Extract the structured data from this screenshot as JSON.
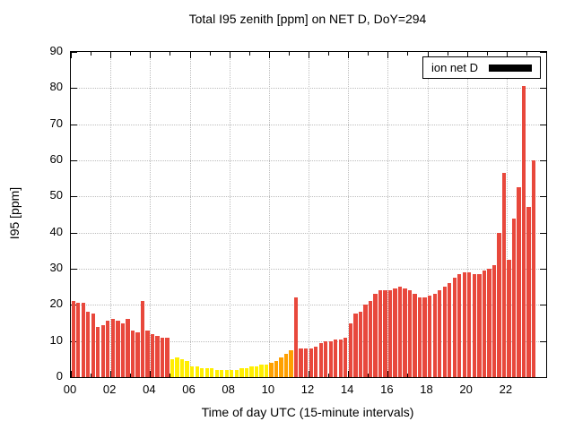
{
  "title": "Total I95 zenith [ppm] on NET D, DoY=294",
  "legend": {
    "label": "ion net D",
    "swatch_color": "#000000"
  },
  "axes": {
    "ylabel": "I95 [ppm]",
    "xlabel": "Time of day UTC (15-minute intervals)",
    "y_ticks": [
      "0",
      "10",
      "20",
      "30",
      "40",
      "50",
      "60",
      "70",
      "80",
      "90"
    ],
    "x_ticks": [
      "00",
      "02",
      "04",
      "06",
      "08",
      "10",
      "12",
      "14",
      "16",
      "18",
      "20",
      "22"
    ]
  },
  "chart_data": {
    "type": "bar",
    "title": "Total I95 zenith [ppm] on NET D, DoY=294",
    "xlabel": "Time of day UTC (15-minute intervals)",
    "ylabel": "I95 [ppm]",
    "ylim": [
      0,
      90
    ],
    "xlim_hours": [
      0,
      24
    ],
    "interval_minutes": 15,
    "start_time": "00:00",
    "legend_entries": [
      {
        "label": "ion net D",
        "color": "#000000"
      }
    ],
    "palette": {
      "r": "#e8483c",
      "o": "#ffa000",
      "y": "#ffee00"
    },
    "values": [
      21,
      20.5,
      20.5,
      18,
      17.5,
      14,
      14.5,
      15.5,
      16,
      15.5,
      15,
      16,
      13,
      12.5,
      21,
      13,
      12,
      11.5,
      11,
      11,
      5,
      5.5,
      5,
      4.5,
      3,
      3,
      2.5,
      2.5,
      2.5,
      2,
      2,
      2,
      2,
      2,
      2.5,
      2.5,
      3,
      3,
      3.5,
      3.5,
      4,
      4.5,
      5.5,
      6.5,
      7.5,
      22,
      8,
      8,
      8,
      8.5,
      9.5,
      10,
      10,
      10.5,
      10.5,
      11,
      15,
      17.5,
      18,
      20,
      21,
      23,
      24,
      24,
      24,
      24.5,
      25,
      24.5,
      24,
      23,
      22,
      22,
      22.5,
      23,
      24,
      25,
      26,
      27.5,
      28.5,
      29,
      29,
      28.5,
      28.5,
      29.5,
      30,
      31,
      40,
      56.5,
      32.5,
      44,
      52.5,
      80.5,
      47,
      60
    ],
    "colors": [
      "r",
      "r",
      "r",
      "r",
      "r",
      "r",
      "r",
      "r",
      "r",
      "r",
      "r",
      "r",
      "r",
      "r",
      "r",
      "r",
      "r",
      "r",
      "r",
      "r",
      "y",
      "y",
      "y",
      "y",
      "y",
      "y",
      "y",
      "y",
      "y",
      "y",
      "y",
      "y",
      "y",
      "y",
      "y",
      "y",
      "y",
      "y",
      "y",
      "y",
      "o",
      "o",
      "o",
      "o",
      "o",
      "r",
      "r",
      "r",
      "r",
      "r",
      "r",
      "r",
      "r",
      "r",
      "r",
      "r",
      "r",
      "r",
      "r",
      "r",
      "r",
      "r",
      "r",
      "r",
      "r",
      "r",
      "r",
      "r",
      "r",
      "r",
      "r",
      "r",
      "r",
      "r",
      "r",
      "r",
      "r",
      "r",
      "r",
      "r",
      "r",
      "r",
      "r",
      "r",
      "r",
      "r",
      "r",
      "r",
      "r",
      "r",
      "r",
      "r",
      "r",
      "r"
    ]
  }
}
